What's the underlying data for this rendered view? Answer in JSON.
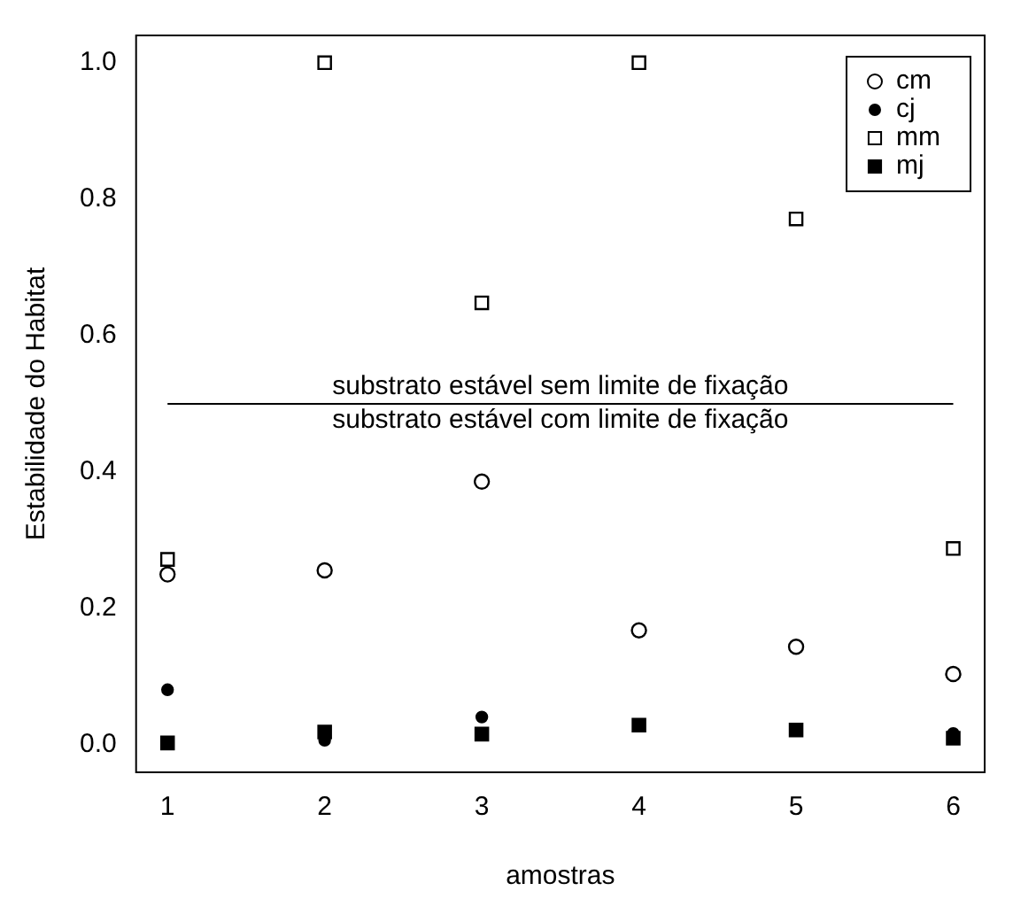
{
  "chart_data": {
    "type": "scatter",
    "xlabel": "amostras",
    "ylabel": "Estabilidade do Habitat",
    "x": [
      1,
      2,
      3,
      4,
      5,
      6
    ],
    "series": [
      {
        "name": "cm",
        "color": "#000000",
        "marker": "circle",
        "values": [
          0.25,
          0.256,
          0.386,
          0.168,
          0.144,
          0.104
        ]
      },
      {
        "name": "cj",
        "color": "#000000",
        "marker": "circle",
        "values": [
          0.081,
          0.007,
          0.041,
          null,
          null,
          0.017
        ]
      },
      {
        "name": "mm",
        "color": "#000000",
        "marker": "square",
        "values": [
          0.272,
          1.0,
          0.648,
          1.0,
          0.771,
          0.288
        ]
      },
      {
        "name": "mj",
        "color": "#000000",
        "marker": "square",
        "values": [
          0.003,
          0.019,
          0.016,
          0.029,
          0.022,
          0.01
        ]
      }
    ],
    "xlim": [
      0.8,
      6.2
    ],
    "xticks": [
      1,
      2,
      3,
      4,
      5,
      6
    ],
    "ylim": [
      -0.04,
      1.04
    ],
    "yticks": [
      {
        "value": 0,
        "label": "0.0"
      },
      0.2,
      0.4,
      0.6,
      0.8,
      {
        "value": 1,
        "label": "1.0"
      }
    ],
    "ref_lines": [
      {
        "axis": "y",
        "value": 0.5,
        "color": "#000000"
      }
    ],
    "annotations": [
      "substrato estável sem limite de fixação",
      "substrato estável com limite de fixação"
    ],
    "legend": "top right",
    "grid": false
  }
}
